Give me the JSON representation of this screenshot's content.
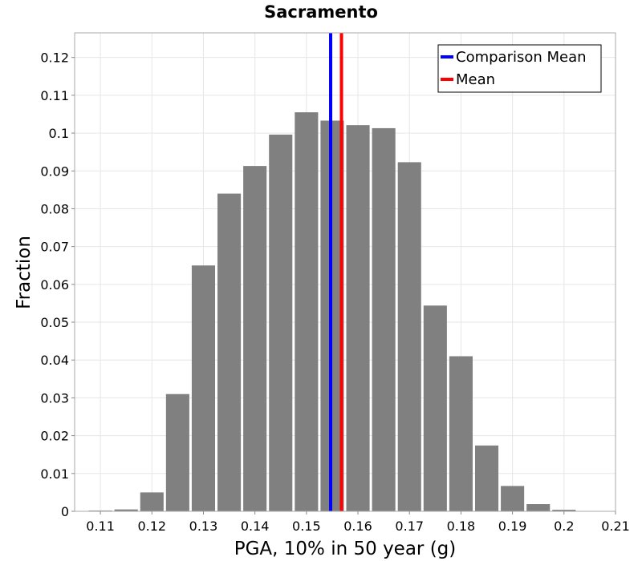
{
  "chart_data": {
    "type": "bar",
    "title": "Sacramento",
    "xlabel": "PGA, 10% in 50 year (g)",
    "ylabel": "Fraction",
    "xlim": [
      0.105,
      0.21
    ],
    "ylim": [
      0,
      0.1265
    ],
    "grid": true,
    "legend_position": "top-right",
    "x_ticks": [
      0.11,
      0.12,
      0.13,
      0.14,
      0.15,
      0.16,
      0.17,
      0.18,
      0.19,
      0.2,
      0.21
    ],
    "x_tick_labels": [
      "0.11",
      "0.12",
      "0.13",
      "0.14",
      "0.15",
      "0.16",
      "0.17",
      "0.18",
      "0.19",
      "0.2",
      "0.21"
    ],
    "y_ticks": [
      0,
      0.01,
      0.02,
      0.03,
      0.04,
      0.05,
      0.06,
      0.07,
      0.08,
      0.09,
      0.1,
      0.11,
      0.12
    ],
    "y_tick_labels": [
      "0",
      "0.01",
      "0.02",
      "0.03",
      "0.04",
      "0.05",
      "0.06",
      "0.07",
      "0.08",
      "0.09",
      "0.1",
      "0.11",
      "0.12"
    ],
    "bin_width": 0.005,
    "bins": [
      {
        "x": 0.11,
        "value": 0.0002
      },
      {
        "x": 0.115,
        "value": 0.0005
      },
      {
        "x": 0.12,
        "value": 0.005
      },
      {
        "x": 0.125,
        "value": 0.031
      },
      {
        "x": 0.13,
        "value": 0.065
      },
      {
        "x": 0.135,
        "value": 0.084
      },
      {
        "x": 0.14,
        "value": 0.0913
      },
      {
        "x": 0.145,
        "value": 0.0996
      },
      {
        "x": 0.15,
        "value": 0.1055
      },
      {
        "x": 0.155,
        "value": 0.1033
      },
      {
        "x": 0.16,
        "value": 0.1021
      },
      {
        "x": 0.165,
        "value": 0.1013
      },
      {
        "x": 0.17,
        "value": 0.0923
      },
      {
        "x": 0.175,
        "value": 0.0544
      },
      {
        "x": 0.18,
        "value": 0.041
      },
      {
        "x": 0.185,
        "value": 0.0174
      },
      {
        "x": 0.19,
        "value": 0.0067
      },
      {
        "x": 0.195,
        "value": 0.0019
      },
      {
        "x": 0.2,
        "value": 0.0004
      }
    ],
    "bar_color": "#808080",
    "reference_lines": [
      {
        "name": "Comparison Mean",
        "x": 0.1547,
        "color": "#0000ff"
      },
      {
        "name": "Mean",
        "x": 0.1568,
        "color": "#ff0000"
      }
    ]
  }
}
